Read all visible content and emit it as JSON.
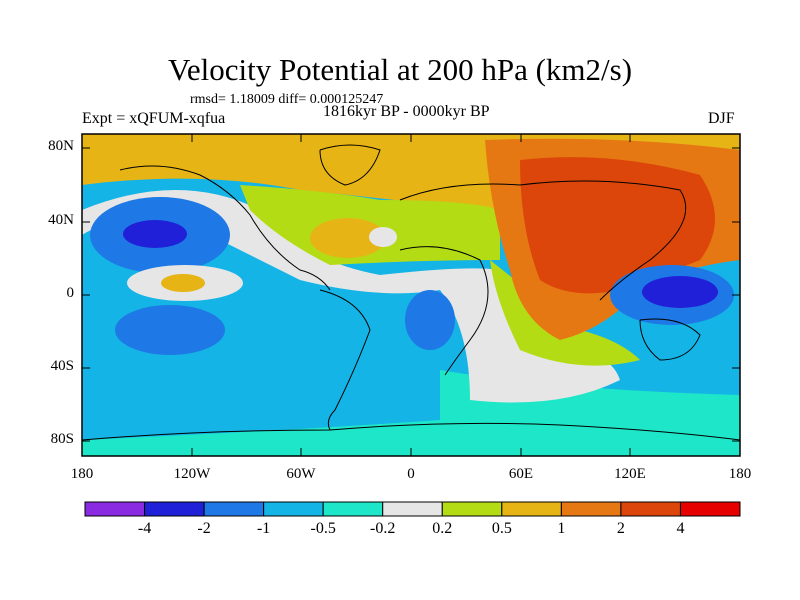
{
  "header": {
    "title": "Velocity Potential at 200 hPa (km2/s)",
    "stats": "rmsd= 1.18009 diff= 0.000125247",
    "experiment": "Expt = xQFUM-xqfua",
    "period": "1816kyr BP - 0000kyr BP",
    "season": "DJF"
  },
  "axes": {
    "y_ticks": [
      "80N",
      "40N",
      "0",
      "40S",
      "80S"
    ],
    "x_ticks": [
      "180",
      "120W",
      "60W",
      "0",
      "60E",
      "120E",
      "180"
    ]
  },
  "colorbar": {
    "colors": [
      "#8a2be2",
      "#2020d8",
      "#1e78e6",
      "#14b4e6",
      "#1ee6c8",
      "#e6e6e6",
      "#b4dc14",
      "#e6b414",
      "#e67814",
      "#dc460a",
      "#e60000"
    ],
    "labels": [
      "-4",
      "-2",
      "-1",
      "-0.5",
      "-0.2",
      "0.2",
      "0.5",
      "1",
      "2",
      "4"
    ]
  }
}
